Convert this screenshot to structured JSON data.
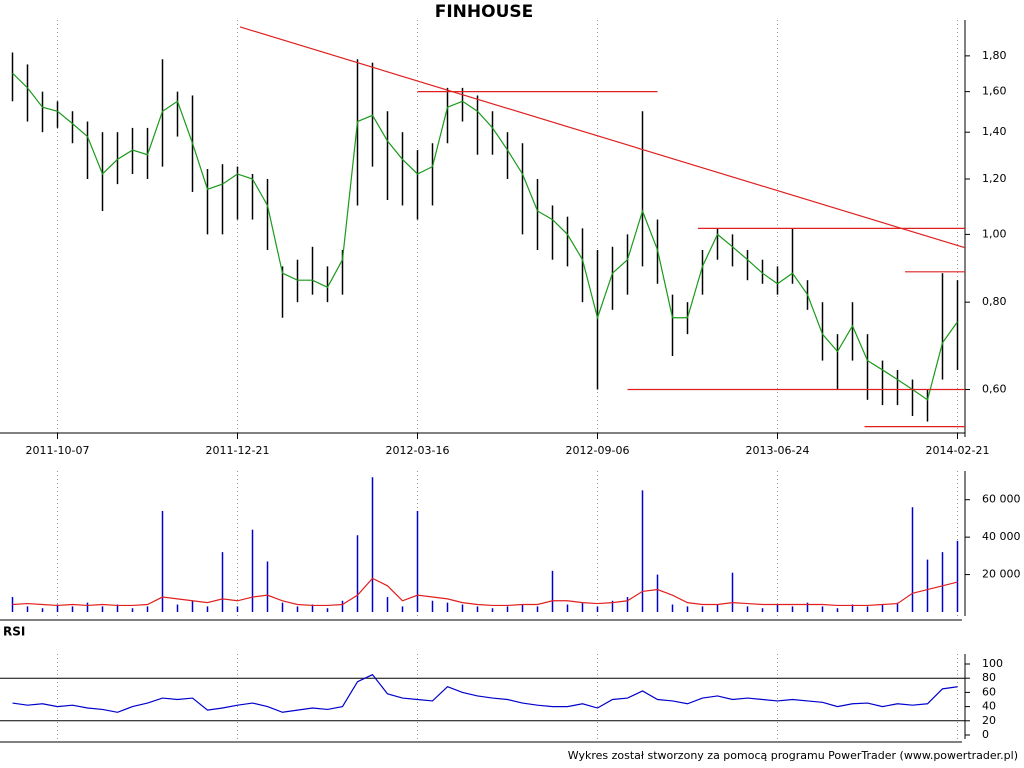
{
  "chart_data": [
    {
      "type": "hilo",
      "title": "FINHOUSE",
      "log": true,
      "high": [
        1.82,
        1.75,
        1.6,
        1.55,
        1.5,
        1.45,
        1.4,
        1.4,
        1.42,
        1.42,
        1.78,
        1.6,
        1.58,
        1.24,
        1.26,
        1.25,
        1.22,
        1.2,
        0.9,
        0.92,
        0.96,
        0.9,
        0.95,
        1.78,
        1.76,
        1.5,
        1.4,
        1.32,
        1.35,
        1.62,
        1.62,
        1.58,
        1.5,
        1.4,
        1.35,
        1.2,
        1.1,
        1.06,
        1.02,
        0.95,
        0.96,
        1.0,
        1.5,
        1.05,
        0.82,
        0.8,
        0.95,
        1.02,
        1.0,
        0.95,
        0.92,
        0.9,
        1.02,
        0.86,
        0.8,
        0.72,
        0.8,
        0.72,
        0.66,
        0.64,
        0.62,
        0.6,
        0.88,
        0.86
      ],
      "low": [
        1.55,
        1.45,
        1.4,
        1.42,
        1.35,
        1.2,
        1.08,
        1.18,
        1.22,
        1.2,
        1.25,
        1.38,
        1.15,
        1.0,
        1.0,
        1.05,
        1.05,
        0.95,
        0.76,
        0.8,
        0.82,
        0.8,
        0.82,
        1.1,
        1.25,
        1.12,
        1.1,
        1.05,
        1.1,
        1.35,
        1.45,
        1.3,
        1.3,
        1.2,
        1.0,
        0.95,
        0.92,
        0.9,
        0.8,
        0.6,
        0.78,
        0.82,
        0.9,
        0.85,
        0.67,
        0.72,
        0.82,
        0.92,
        0.9,
        0.86,
        0.85,
        0.82,
        0.85,
        0.78,
        0.66,
        0.6,
        0.66,
        0.58,
        0.57,
        0.57,
        0.55,
        0.54,
        0.62,
        0.64
      ],
      "ma": [
        1.7,
        1.62,
        1.52,
        1.5,
        1.44,
        1.38,
        1.22,
        1.28,
        1.32,
        1.3,
        1.5,
        1.55,
        1.35,
        1.16,
        1.18,
        1.22,
        1.2,
        1.1,
        0.88,
        0.86,
        0.86,
        0.84,
        0.92,
        1.45,
        1.48,
        1.36,
        1.28,
        1.22,
        1.25,
        1.52,
        1.55,
        1.5,
        1.42,
        1.32,
        1.22,
        1.08,
        1.05,
        1.0,
        0.92,
        0.76,
        0.88,
        0.92,
        1.08,
        0.95,
        0.76,
        0.76,
        0.9,
        1.0,
        0.96,
        0.92,
        0.88,
        0.85,
        0.88,
        0.82,
        0.72,
        0.68,
        0.74,
        0.66,
        0.64,
        0.62,
        0.6,
        0.58,
        0.7,
        0.75
      ],
      "bar_color": "#000000",
      "ma_color": "#1a9a1a",
      "lines": [
        {
          "x": [
            15.67,
            64
          ],
          "y": [
            1.98,
            0.957
          ]
        },
        {
          "x": [
            27.5,
            43.5
          ],
          "y": [
            1.6,
            1.6
          ]
        },
        {
          "x": [
            46.2,
            64
          ],
          "y": [
            1.02,
            1.02
          ]
        },
        {
          "x": [
            60,
            64
          ],
          "y": [
            0.884,
            0.884
          ]
        },
        {
          "x": [
            41.5,
            64
          ],
          "y": [
            0.6,
            0.6
          ]
        },
        {
          "x": [
            57.3,
            64
          ],
          "y": [
            0.531,
            0.531
          ]
        }
      ],
      "lines_color": "#e02020",
      "xlim": [
        0,
        64
      ],
      "xticks": [
        {
          "value": 3.5,
          "label": "2011-10-07"
        },
        {
          "value": 15.5,
          "label": "2011-12-21"
        },
        {
          "value": 27.5,
          "label": "2012-03-16"
        },
        {
          "value": 39.5,
          "label": "2012-09-06"
        },
        {
          "value": 51.5,
          "label": "2013-06-24"
        },
        {
          "value": 63.5,
          "label": "2014-02-21"
        }
      ],
      "ylim": [
        0.52,
        1.96
      ],
      "yticks": [
        {
          "value": 0.6,
          "label": "0,60"
        },
        {
          "value": 0.8,
          "label": "0,80"
        },
        {
          "value": 1.0,
          "label": "1,00"
        },
        {
          "value": 1.2,
          "label": "1,20"
        },
        {
          "value": 1.4,
          "label": "1,40"
        },
        {
          "value": 1.6,
          "label": "1,60"
        },
        {
          "value": 1.8,
          "label": "1,80"
        }
      ],
      "grid": true
    },
    {
      "type": "bar",
      "values": [
        8000,
        3000,
        2000,
        4000,
        3000,
        5000,
        3000,
        4000,
        2000,
        3000,
        54000,
        4000,
        6000,
        3000,
        32000,
        3000,
        44000,
        27000,
        5000,
        3000,
        4000,
        2000,
        6000,
        41000,
        72000,
        8000,
        3000,
        54000,
        6000,
        5000,
        4000,
        3000,
        2000,
        3000,
        4000,
        3000,
        22000,
        4000,
        5000,
        3000,
        6000,
        8000,
        65000,
        20000,
        4000,
        3000,
        3000,
        4000,
        21000,
        3000,
        2000,
        4000,
        3000,
        5000,
        3000,
        2000,
        4000,
        3000,
        4000,
        5000,
        56000,
        28000,
        32000,
        38000
      ],
      "ma": [
        4000,
        4500,
        4000,
        3500,
        4000,
        3500,
        4000,
        3500,
        3500,
        4000,
        8000,
        7000,
        6000,
        5000,
        7000,
        6000,
        8000,
        9000,
        6000,
        4000,
        3500,
        3500,
        4000,
        9000,
        18000,
        14000,
        6000,
        9000,
        8000,
        7000,
        5000,
        4000,
        3500,
        3500,
        4000,
        4000,
        6000,
        6000,
        5000,
        4500,
        5000,
        6000,
        11000,
        12000,
        9000,
        5000,
        4000,
        4000,
        5000,
        4500,
        4000,
        4000,
        4000,
        4000,
        4000,
        3500,
        3500,
        3500,
        4000,
        4500,
        10000,
        12000,
        14000,
        16000
      ],
      "color": "#0000cc",
      "ma_color": "#e02020",
      "ylim": [
        0,
        70000
      ],
      "yticks": [
        {
          "value": 20000,
          "label": "20 000"
        },
        {
          "value": 40000,
          "label": "40 000"
        },
        {
          "value": 60000,
          "label": "60 000"
        }
      ]
    },
    {
      "type": "line",
      "title": "RSI",
      "values": [
        45,
        42,
        44,
        40,
        42,
        38,
        36,
        32,
        40,
        45,
        52,
        50,
        52,
        35,
        38,
        42,
        45,
        40,
        32,
        35,
        38,
        36,
        40,
        75,
        85,
        58,
        52,
        50,
        48,
        68,
        60,
        55,
        52,
        50,
        45,
        42,
        40,
        40,
        44,
        38,
        50,
        52,
        62,
        50,
        48,
        44,
        52,
        55,
        50,
        52,
        50,
        48,
        50,
        48,
        46,
        40,
        44,
        45,
        40,
        44,
        42,
        44,
        65,
        68
      ],
      "color": "#0000cc",
      "levels": [
        20,
        80
      ],
      "ylim": [
        0,
        100
      ],
      "yticks": [
        0,
        20,
        40,
        60,
        80,
        100
      ]
    }
  ],
  "footer": "Wykres został stworzony za pomocą programu PowerTrader (www.powertrader.pl)"
}
